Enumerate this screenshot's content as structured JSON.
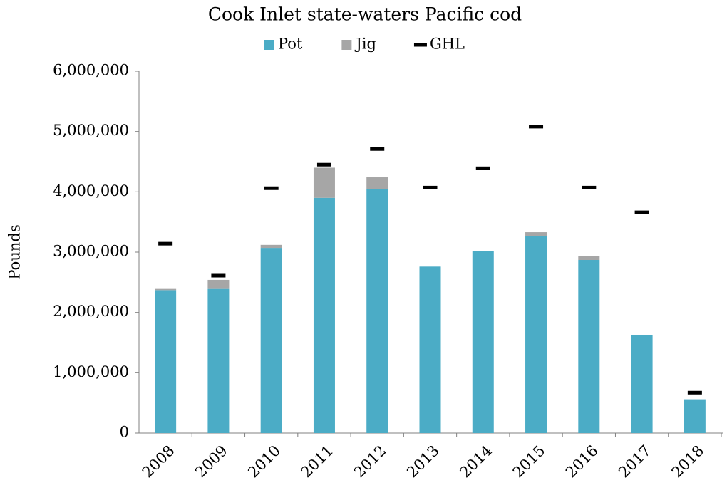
{
  "chart_data": {
    "type": "stacked_bar",
    "title": "Cook Inlet state-waters Pacific cod",
    "y_label": "Pounds",
    "categories": [
      "2008",
      "2009",
      "2010",
      "2011",
      "2012",
      "2013",
      "2014",
      "2015",
      "2016",
      "2017",
      "2018"
    ],
    "series": [
      {
        "name": "Pot",
        "type": "bar",
        "color": "#4bacc6",
        "values": [
          2370000,
          2390000,
          3070000,
          3900000,
          4040000,
          2760000,
          3020000,
          3260000,
          2870000,
          1630000,
          560000
        ]
      },
      {
        "name": "Jig",
        "type": "bar",
        "color": "#a6a6a6",
        "values": [
          20000,
          150000,
          50000,
          500000,
          200000,
          0,
          0,
          70000,
          60000,
          0,
          0
        ]
      },
      {
        "name": "GHL",
        "type": "marker",
        "color": "#000000",
        "values": [
          3140000,
          2610000,
          4060000,
          4450000,
          4710000,
          4070000,
          4390000,
          5080000,
          4070000,
          3660000,
          670000
        ]
      }
    ],
    "ylim": [
      0,
      6000000
    ],
    "yticks": [
      0,
      {
        "value": 1000000,
        "label": "1,000,000"
      },
      {
        "value": 2000000,
        "label": "2,000,000"
      },
      {
        "value": 3000000,
        "label": "3,000,000"
      },
      {
        "value": 4000000,
        "label": "4,000,000"
      },
      {
        "value": 5000000,
        "label": "5,000,000"
      },
      {
        "value": 6000000,
        "label": "6,000,000"
      }
    ],
    "grid": false,
    "legend": "top"
  }
}
